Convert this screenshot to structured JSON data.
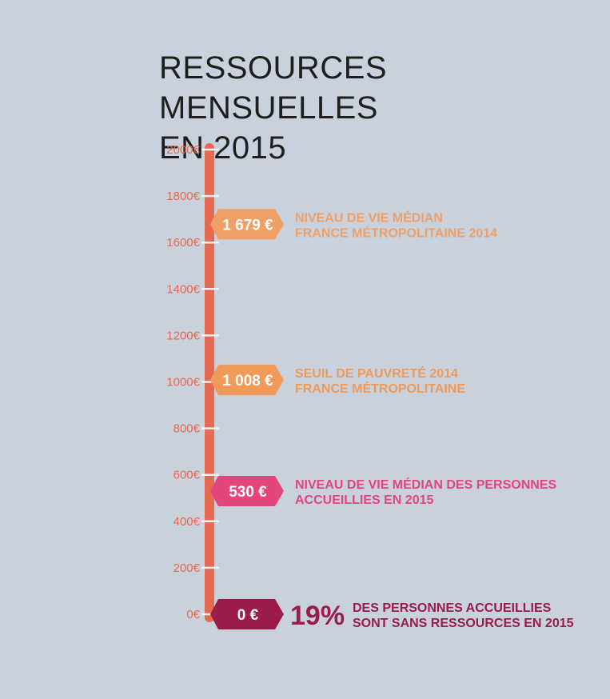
{
  "title_lines": [
    "RESSOURCES MENSUELLES",
    "EN 2015"
  ],
  "colors": {
    "background": "#c9d1dc",
    "axis": "#e46a52",
    "tick_label": "#e46a52",
    "title": "#1e1e1e"
  },
  "chart_data": {
    "type": "annotated-scale",
    "title": "RESSOURCES MENSUELLES EN 2015",
    "ylim": [
      0,
      2000
    ],
    "ticks": [
      0,
      200,
      400,
      600,
      800,
      1000,
      1200,
      1400,
      1600,
      1800,
      2000
    ],
    "tick_labels": [
      "0€",
      "200€",
      "400€",
      "600€",
      "800€",
      "1000€",
      "1200€",
      "1400€",
      "1600€",
      "1800€",
      "2000€"
    ],
    "markers": [
      {
        "value": 1679,
        "label": "1 679 €",
        "color": "#f0a066",
        "text_lines": [
          "NIVEAU DE VIE MÉDIAN",
          "FRANCE MÉTROPOLITAINE 2014"
        ]
      },
      {
        "value": 1008,
        "label": "1 008 €",
        "color": "#ef9a58",
        "text_lines": [
          "SEUIL DE PAUVRETÉ 2014",
          "FRANCE MÉTROPOLITAINE"
        ]
      },
      {
        "value": 530,
        "label": "530 €",
        "color": "#e4457d",
        "text_lines": [
          "NIVEAU DE VIE MÉDIAN DES PERSONNES",
          "ACCUEILLIES EN 2015"
        ]
      },
      {
        "value": 0,
        "label": "0 €",
        "color": "#9b1b4b",
        "percent": "19%",
        "text_lines": [
          "DES PERSONNES ACCUEILLIES",
          "SONT SANS RESSOURCES EN 2015"
        ]
      }
    ]
  }
}
